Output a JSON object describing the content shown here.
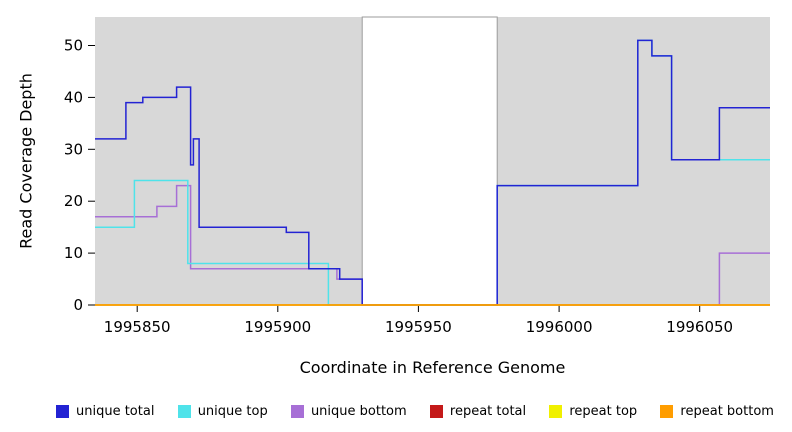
{
  "figure": {
    "xlabel": "Coordinate in Reference Genome",
    "ylabel": "Read Coverage Depth",
    "background": "#ffffff",
    "plot_bg": "#d8d8d8",
    "axis_color": "#000000"
  },
  "chart_data": {
    "type": "line",
    "step": true,
    "title": "",
    "xlabel": "Coordinate in Reference Genome",
    "ylabel": "Read Coverage Depth",
    "xlim": [
      1995835,
      1996075
    ],
    "ylim": [
      0,
      55.5
    ],
    "xticks": [
      1995850,
      1995900,
      1995950,
      1996000,
      1996050
    ],
    "yticks": [
      0,
      10,
      20,
      30,
      40,
      50
    ],
    "grid": false,
    "legend_position": "bottom",
    "mask_region": {
      "x0": 1995930,
      "x1": 1995978,
      "color": "#ffffff"
    },
    "series": [
      {
        "name": "unique bottom",
        "color": "#a76fd6",
        "points": [
          [
            1995835,
            17
          ],
          [
            1995857,
            19
          ],
          [
            1995864,
            23
          ],
          [
            1995869,
            7
          ],
          [
            1995921,
            5
          ],
          [
            1995930,
            0
          ],
          [
            1996057,
            10
          ],
          [
            1996075,
            10
          ]
        ]
      },
      {
        "name": "unique top",
        "color": "#4fe3ea",
        "points": [
          [
            1995835,
            15
          ],
          [
            1995849,
            24
          ],
          [
            1995868,
            8
          ],
          [
            1995918,
            0
          ],
          [
            1995978,
            23
          ],
          [
            1996028,
            51
          ],
          [
            1996033,
            48
          ],
          [
            1996040,
            28
          ],
          [
            1996075,
            28
          ]
        ]
      },
      {
        "name": "unique total",
        "color": "#2323d3",
        "points": [
          [
            1995835,
            32
          ],
          [
            1995846,
            39
          ],
          [
            1995852,
            40
          ],
          [
            1995864,
            42
          ],
          [
            1995869,
            27
          ],
          [
            1995870,
            32
          ],
          [
            1995872,
            15
          ],
          [
            1995903,
            14
          ],
          [
            1995911,
            7
          ],
          [
            1995922,
            5
          ],
          [
            1995930,
            0
          ],
          [
            1995978,
            23
          ],
          [
            1996028,
            51
          ],
          [
            1996033,
            48
          ],
          [
            1996040,
            28
          ],
          [
            1996057,
            38
          ],
          [
            1996075,
            38
          ]
        ]
      },
      {
        "name": "repeat total",
        "color": "#c41919",
        "points": [
          [
            1995835,
            0
          ],
          [
            1996075,
            0
          ]
        ]
      },
      {
        "name": "repeat top",
        "color": "#f0f000",
        "points": [
          [
            1995835,
            0
          ],
          [
            1996075,
            0
          ]
        ]
      },
      {
        "name": "repeat bottom",
        "color": "#ff9d00",
        "points": [
          [
            1995835,
            0
          ],
          [
            1996075,
            0
          ]
        ]
      }
    ],
    "legend": [
      {
        "label": "unique total",
        "color": "#2323d3"
      },
      {
        "label": "unique top",
        "color": "#4fe3ea"
      },
      {
        "label": "unique bottom",
        "color": "#a76fd6"
      },
      {
        "label": "repeat total",
        "color": "#c41919"
      },
      {
        "label": "repeat top",
        "color": "#f0f000"
      },
      {
        "label": "repeat bottom",
        "color": "#ff9d00"
      }
    ]
  }
}
